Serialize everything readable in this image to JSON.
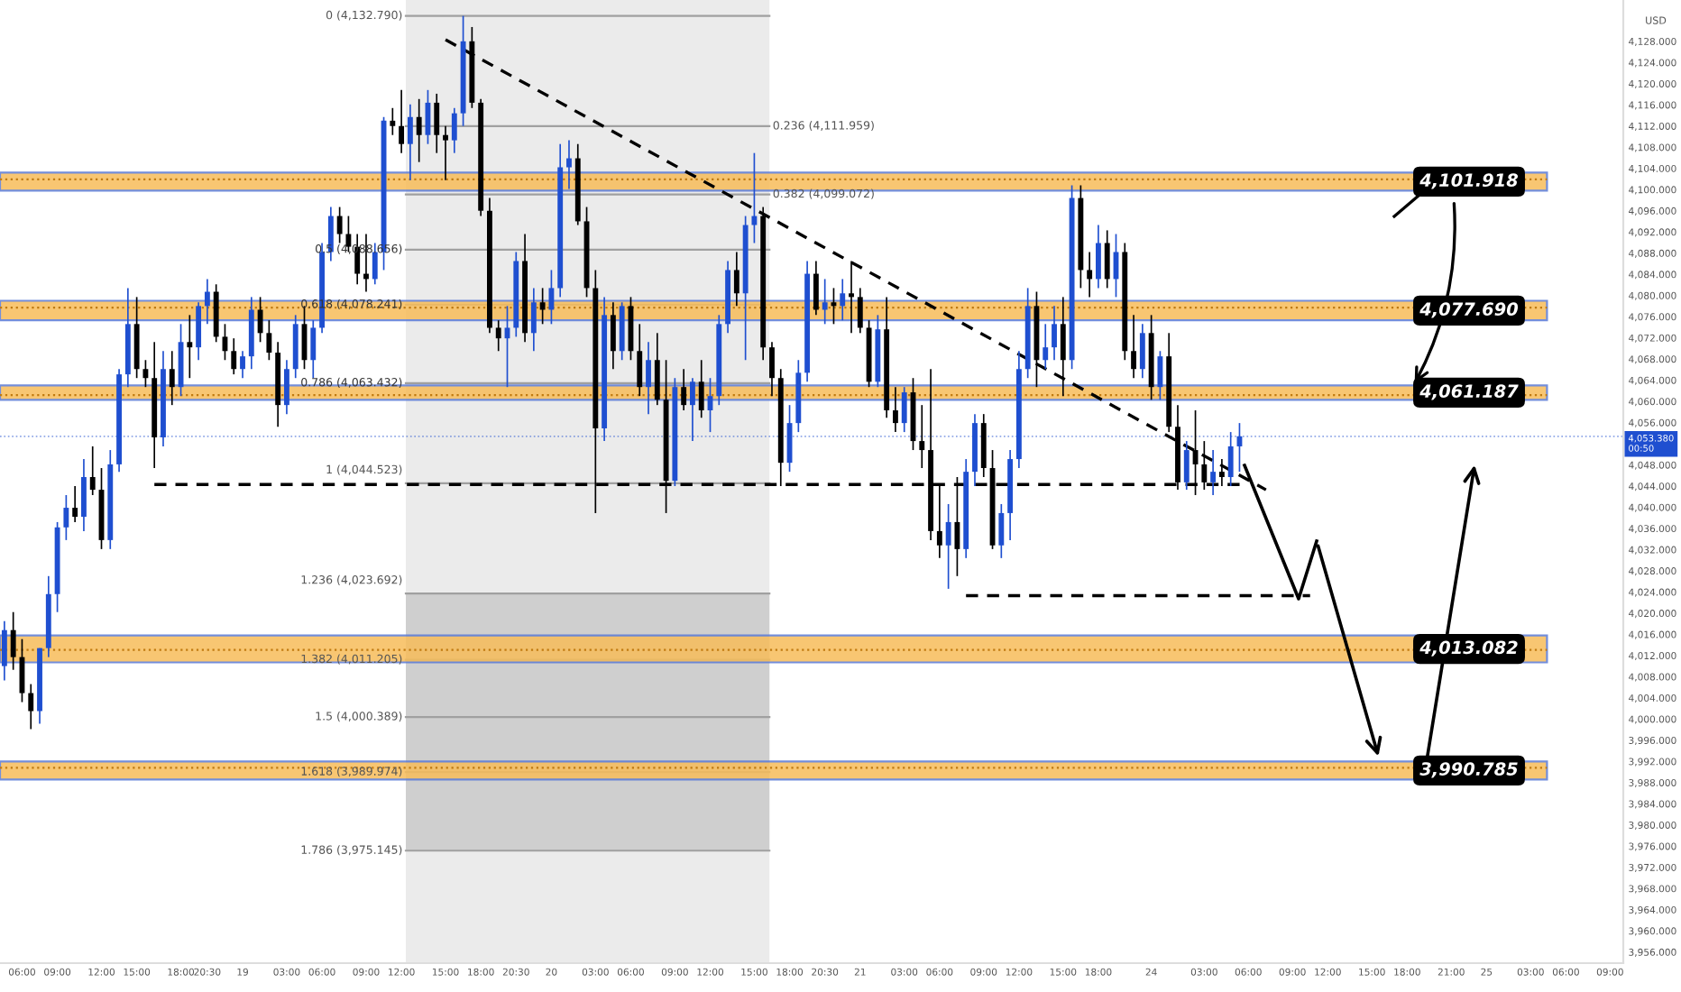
{
  "chart_data": {
    "type": "candlestick",
    "ylabel": "USD",
    "categories": [
      null,
      null,
      "06:00",
      null,
      null,
      null,
      "09:00",
      null,
      null,
      null,
      null,
      "12:00",
      null,
      null,
      null,
      "15:00",
      null,
      null,
      null,
      null,
      "18:00",
      null,
      null,
      "20:30",
      null,
      null,
      null,
      "19",
      null,
      null,
      null,
      null,
      "03:00",
      null,
      null,
      null,
      "06:00",
      null,
      null,
      null,
      null,
      "09:00",
      null,
      null,
      null,
      "12:00",
      null,
      null,
      null,
      null,
      "15:00",
      null,
      null,
      null,
      "18:00",
      null,
      null,
      null,
      "20:30",
      null,
      null,
      null,
      "20",
      null,
      null,
      null,
      null,
      "03:00",
      null,
      null,
      null,
      "06:00",
      null,
      null,
      null,
      null,
      "09:00",
      null,
      null,
      null,
      "12:00",
      null,
      null,
      null,
      null,
      "15:00",
      null,
      null,
      null,
      "18:00",
      null,
      null,
      null,
      "20:30",
      null,
      null,
      null,
      "21",
      null,
      null,
      null,
      null,
      "03:00",
      null,
      null,
      null,
      "06:00",
      null,
      null,
      null,
      null,
      "09:00",
      null,
      null,
      null,
      "12:00",
      null,
      null,
      null,
      null,
      "15:00",
      null,
      null,
      null,
      "18:00",
      null,
      null,
      null,
      null,
      null,
      "24",
      null,
      null,
      null,
      null,
      null,
      "03:00",
      null,
      null,
      null,
      null,
      "06:00",
      null,
      null,
      null,
      null,
      "09:00",
      null,
      null,
      null,
      "12:00",
      null,
      null,
      null,
      null,
      "15:00",
      null,
      null,
      null,
      "18:00",
      null,
      null,
      null,
      null,
      "21:00",
      null,
      null,
      null,
      "25",
      null,
      null,
      null,
      null,
      "03:00",
      null,
      null,
      null,
      "06:00",
      null,
      null,
      null,
      null,
      "09:00",
      null
    ],
    "ohlc": [
      [
        4010.0,
        4018.5,
        4007.3,
        4016.8
      ],
      [
        4016.8,
        4020.2,
        4009.3,
        4011.7
      ],
      [
        4011.7,
        4015.1,
        4003.2,
        4004.9
      ],
      [
        4004.9,
        4006.6,
        3998.1,
        4001.5
      ],
      [
        4001.5,
        4013.4,
        3999.1,
        4013.4
      ],
      [
        4013.4,
        4027.0,
        4011.7,
        4023.6
      ],
      [
        4023.6,
        4037.2,
        4020.2,
        4036.2
      ],
      [
        4036.2,
        4042.3,
        4033.8,
        4039.9
      ],
      [
        4039.9,
        4044.0,
        4037.2,
        4038.2
      ],
      [
        4038.2,
        4049.1,
        4035.5,
        4045.7
      ],
      [
        4045.7,
        4051.5,
        4042.3,
        4043.3
      ],
      [
        4043.3,
        4047.4,
        4032.1,
        4033.8
      ],
      [
        4033.8,
        4050.8,
        4032.1,
        4048.1
      ],
      [
        4048.1,
        4066.1,
        4046.7,
        4065.1
      ],
      [
        4065.1,
        4081.4,
        4062.7,
        4074.6
      ],
      [
        4074.6,
        4079.7,
        4064.4,
        4066.1
      ],
      [
        4066.1,
        4067.8,
        4062.7,
        4064.4
      ],
      [
        4064.4,
        4071.2,
        4047.4,
        4053.2
      ],
      [
        4053.2,
        4069.5,
        4051.5,
        4066.1
      ],
      [
        4066.1,
        4069.5,
        4059.3,
        4062.7
      ],
      [
        4062.7,
        4074.6,
        4061.0,
        4071.2
      ],
      [
        4071.2,
        4076.3,
        4064.4,
        4070.2
      ],
      [
        4070.2,
        4078.7,
        4067.8,
        4078.0
      ],
      [
        4078.0,
        4083.1,
        4074.6,
        4080.7
      ],
      [
        4080.7,
        4082.1,
        4071.2,
        4072.2
      ],
      [
        4072.2,
        4074.6,
        4067.8,
        4069.5
      ],
      [
        4069.5,
        4071.9,
        4065.1,
        4066.1
      ],
      [
        4066.1,
        4069.5,
        4064.4,
        4068.5
      ],
      [
        4068.5,
        4079.7,
        4066.1,
        4077.3
      ],
      [
        4077.3,
        4079.7,
        4071.2,
        4072.9
      ],
      [
        4072.9,
        4075.3,
        4067.8,
        4069.2
      ],
      [
        4069.2,
        4071.2,
        4055.2,
        4059.3
      ],
      [
        4059.3,
        4067.8,
        4057.6,
        4066.1
      ],
      [
        4066.1,
        4076.3,
        4064.4,
        4074.6
      ],
      [
        4074.6,
        4078.0,
        4066.1,
        4067.8
      ],
      [
        4067.8,
        4075.3,
        4064.4,
        4073.9
      ],
      [
        4073.9,
        4089.9,
        4072.9,
        4088.2
      ],
      [
        4088.2,
        4096.7,
        4086.5,
        4095.0
      ],
      [
        4095.0,
        4096.7,
        4089.9,
        4091.6
      ],
      [
        4091.6,
        4095.0,
        4088.2,
        4089.2
      ],
      [
        4089.2,
        4091.6,
        4082.1,
        4084.1
      ],
      [
        4084.1,
        4091.6,
        4080.7,
        4083.1
      ],
      [
        4083.1,
        4089.9,
        4082.1,
        4088.2
      ],
      [
        4088.2,
        4113.7,
        4084.8,
        4113.0
      ],
      [
        4113.0,
        4115.4,
        4110.3,
        4112.0
      ],
      [
        4112.0,
        4118.8,
        4106.9,
        4108.6
      ],
      [
        4108.6,
        4116.1,
        4101.8,
        4113.7
      ],
      [
        4113.7,
        4117.1,
        4105.2,
        4110.3
      ],
      [
        4110.3,
        4118.8,
        4108.6,
        4116.4
      ],
      [
        4116.4,
        4118.1,
        4106.9,
        4110.3
      ],
      [
        4110.3,
        4112.0,
        4101.8,
        4109.3
      ],
      [
        4109.3,
        4115.4,
        4106.9,
        4114.4
      ],
      [
        4114.4,
        4132.8,
        4112.0,
        4128.0
      ],
      [
        4128.0,
        4130.7,
        4115.4,
        4116.4
      ],
      [
        4116.4,
        4117.1,
        4095.0,
        4096.0
      ],
      [
        4096.0,
        4098.4,
        4072.9,
        4073.9
      ],
      [
        4073.9,
        4075.3,
        4069.5,
        4071.9
      ],
      [
        4071.9,
        4078.0,
        4062.7,
        4073.9
      ],
      [
        4073.9,
        4088.2,
        4072.2,
        4086.5
      ],
      [
        4086.5,
        4091.6,
        4071.2,
        4072.9
      ],
      [
        4072.9,
        4081.4,
        4069.5,
        4078.7
      ],
      [
        4078.7,
        4081.4,
        4074.6,
        4077.3
      ],
      [
        4077.3,
        4084.8,
        4074.6,
        4081.4
      ],
      [
        4081.4,
        4108.6,
        4079.7,
        4104.2
      ],
      [
        4104.2,
        4109.3,
        4100.1,
        4105.9
      ],
      [
        4105.9,
        4108.6,
        4093.3,
        4094.0
      ],
      [
        4094.0,
        4096.7,
        4079.7,
        4081.4
      ],
      [
        4081.4,
        4084.8,
        4038.9,
        4054.9
      ],
      [
        4054.9,
        4079.7,
        4052.5,
        4076.3
      ],
      [
        4076.3,
        4078.7,
        4066.1,
        4069.5
      ],
      [
        4069.5,
        4078.7,
        4067.8,
        4078.0
      ],
      [
        4078.0,
        4079.7,
        4067.8,
        4069.5
      ],
      [
        4069.5,
        4074.6,
        4061.0,
        4062.7
      ],
      [
        4062.7,
        4071.2,
        4057.6,
        4067.8
      ],
      [
        4067.8,
        4072.9,
        4059.3,
        4060.3
      ],
      [
        4060.3,
        4067.8,
        4038.9,
        4045.0
      ],
      [
        4045.0,
        4064.4,
        4044.0,
        4062.7
      ],
      [
        4062.7,
        4066.1,
        4058.3,
        4059.3
      ],
      [
        4059.3,
        4064.4,
        4052.5,
        4063.7
      ],
      [
        4063.7,
        4067.8,
        4056.9,
        4058.3
      ],
      [
        4058.3,
        4064.4,
        4054.2,
        4061.0
      ],
      [
        4061.0,
        4076.3,
        4059.3,
        4074.6
      ],
      [
        4074.6,
        4086.5,
        4072.9,
        4084.8
      ],
      [
        4084.8,
        4088.2,
        4078.0,
        4080.4
      ],
      [
        4080.4,
        4095.0,
        4067.8,
        4093.3
      ],
      [
        4093.3,
        4106.9,
        4089.9,
        4095.0
      ],
      [
        4095.0,
        4096.7,
        4067.8,
        4070.2
      ],
      [
        4070.2,
        4071.2,
        4061.0,
        4064.4
      ],
      [
        4064.4,
        4066.1,
        4044.0,
        4048.4
      ],
      [
        4048.4,
        4059.3,
        4046.7,
        4055.9
      ],
      [
        4055.9,
        4067.8,
        4054.2,
        4065.4
      ],
      [
        4065.4,
        4086.5,
        4063.7,
        4084.1
      ],
      [
        4084.1,
        4086.5,
        4076.3,
        4077.3
      ],
      [
        4077.3,
        4083.1,
        4074.6,
        4078.7
      ],
      [
        4078.7,
        4081.4,
        4074.6,
        4078.0
      ],
      [
        4078.0,
        4083.1,
        4075.3,
        4080.4
      ],
      [
        4080.4,
        4086.5,
        4072.9,
        4079.7
      ],
      [
        4079.7,
        4081.4,
        4072.9,
        4073.9
      ],
      [
        4073.9,
        4075.3,
        4062.7,
        4063.7
      ],
      [
        4063.7,
        4076.3,
        4062.7,
        4073.6
      ],
      [
        4073.6,
        4079.7,
        4056.9,
        4058.3
      ],
      [
        4058.3,
        4062.7,
        4054.2,
        4055.9
      ],
      [
        4055.9,
        4062.7,
        4054.2,
        4061.7
      ],
      [
        4061.7,
        4064.4,
        4050.8,
        4052.5
      ],
      [
        4052.5,
        4059.3,
        4047.4,
        4050.8
      ],
      [
        4050.8,
        4066.1,
        4033.8,
        4035.5
      ],
      [
        4035.5,
        4044.0,
        4030.4,
        4032.8
      ],
      [
        4032.8,
        4040.6,
        4024.6,
        4037.2
      ],
      [
        4037.2,
        4045.7,
        4027.0,
        4032.1
      ],
      [
        4032.1,
        4049.1,
        4030.4,
        4046.7
      ],
      [
        4046.7,
        4057.6,
        4044.0,
        4055.9
      ],
      [
        4055.9,
        4057.6,
        4045.7,
        4047.4
      ],
      [
        4047.4,
        4050.8,
        4032.1,
        4032.8
      ],
      [
        4032.8,
        4040.6,
        4030.4,
        4038.9
      ],
      [
        4038.9,
        4050.8,
        4033.8,
        4049.1
      ],
      [
        4049.1,
        4069.5,
        4047.4,
        4066.1
      ],
      [
        4066.1,
        4081.4,
        4064.4,
        4078.0
      ],
      [
        4078.0,
        4080.7,
        4062.7,
        4067.8
      ],
      [
        4067.8,
        4074.6,
        4066.1,
        4070.2
      ],
      [
        4070.2,
        4078.0,
        4067.8,
        4074.6
      ],
      [
        4074.6,
        4079.7,
        4061.0,
        4067.8
      ],
      [
        4067.8,
        4100.8,
        4066.1,
        4098.4
      ],
      [
        4098.4,
        4100.8,
        4081.4,
        4084.8
      ],
      [
        4084.8,
        4088.2,
        4079.7,
        4083.1
      ],
      [
        4083.1,
        4093.3,
        4081.4,
        4089.9
      ],
      [
        4089.9,
        4092.3,
        4081.4,
        4083.1
      ],
      [
        4083.1,
        4091.6,
        4079.7,
        4088.2
      ],
      [
        4088.2,
        4089.9,
        4067.8,
        4069.5
      ],
      [
        4069.5,
        4076.3,
        4064.4,
        4066.1
      ],
      [
        4066.1,
        4074.6,
        4064.4,
        4072.9
      ],
      [
        4072.9,
        4076.3,
        4060.3,
        4062.7
      ],
      [
        4062.7,
        4069.5,
        4060.3,
        4068.5
      ],
      [
        4068.5,
        4072.9,
        4054.2,
        4055.2
      ],
      [
        4055.2,
        4059.3,
        4043.3,
        4044.7
      ],
      [
        4044.7,
        4052.5,
        4043.3,
        4050.8
      ],
      [
        4050.8,
        4058.3,
        4042.3,
        4048.1
      ],
      [
        4048.1,
        4052.5,
        4043.3,
        4044.7
      ],
      [
        4044.7,
        4050.8,
        4042.3,
        4046.7
      ],
      [
        4046.7,
        4049.1,
        4044.0,
        4045.7
      ],
      [
        4045.7,
        4054.2,
        4044.0,
        4051.5
      ],
      [
        4051.5,
        4055.9,
        4046.7,
        4053.4
      ],
      null,
      null,
      null,
      null,
      null,
      null,
      null,
      null,
      null,
      null,
      null,
      null,
      null,
      null,
      null,
      null,
      null,
      null,
      null,
      null,
      null,
      null,
      null,
      null,
      null,
      null,
      null,
      null,
      null,
      null,
      null,
      null,
      null,
      null,
      null,
      null,
      null,
      null,
      null,
      null,
      null,
      null,
      null
    ],
    "colors": [
      "#1f4fd0",
      "#000000",
      "#000000",
      "#000000",
      "#1f4fd0",
      "#1f4fd0",
      "#1f4fd0",
      "#1f4fd0",
      "#000000",
      "#1f4fd0",
      "#000000",
      "#000000",
      "#1f4fd0",
      "#1f4fd0",
      "#1f4fd0",
      "#000000",
      "#000000",
      "#000000",
      "#1f4fd0",
      "#000000",
      "#1f4fd0",
      "#000000",
      "#1f4fd0",
      "#1f4fd0",
      "#000000",
      "#000000",
      "#000000",
      "#1f4fd0",
      "#1f4fd0",
      "#000000",
      "#000000",
      "#000000",
      "#1f4fd0",
      "#1f4fd0",
      "#000000",
      "#1f4fd0",
      "#1f4fd0",
      "#1f4fd0",
      "#000000",
      "#000000",
      "#000000",
      "#000000",
      "#1f4fd0",
      "#1f4fd0",
      "#000000",
      "#000000",
      "#1f4fd0",
      "#000000",
      "#1f4fd0",
      "#000000",
      "#000000",
      "#1f4fd0",
      "#1f4fd0",
      "#000000",
      "#000000",
      "#000000",
      "#000000",
      "#1f4fd0",
      "#1f4fd0",
      "#000000",
      "#1f4fd0",
      "#000000",
      "#1f4fd0",
      "#1f4fd0",
      "#1f4fd0",
      "#000000",
      "#000000",
      "#000000",
      "#1f4fd0",
      "#000000",
      "#1f4fd0",
      "#000000",
      "#000000",
      "#1f4fd0",
      "#000000",
      "#000000",
      "#1f4fd0",
      "#000000",
      "#1f4fd0",
      "#000000",
      "#1f4fd0",
      "#1f4fd0",
      "#1f4fd0",
      "#000000",
      "#1f4fd0",
      "#1f4fd0",
      "#000000",
      "#000000",
      "#000000",
      "#1f4fd0",
      "#1f4fd0",
      "#1f4fd0",
      "#000000",
      "#1f4fd0",
      "#000000",
      "#1f4fd0",
      "#000000",
      "#000000",
      "#000000",
      "#1f4fd0",
      "#000000",
      "#000000",
      "#1f4fd0",
      "#000000",
      "#000000",
      "#000000",
      "#000000",
      "#1f4fd0",
      "#000000",
      "#1f4fd0",
      "#1f4fd0",
      "#000000",
      "#000000",
      "#1f4fd0",
      "#1f4fd0",
      "#1f4fd0",
      "#1f4fd0",
      "#000000",
      "#1f4fd0",
      "#1f4fd0",
      "#000000",
      "#1f4fd0",
      "#000000",
      "#000000",
      "#1f4fd0",
      "#000000",
      "#1f4fd0",
      "#000000",
      "#000000",
      "#1f4fd0",
      "#000000",
      "#1f4fd0",
      "#000000",
      "#000000",
      "#1f4fd0",
      "#000000",
      "#000000",
      "#1f4fd0",
      "#000000",
      "#1f4fd0",
      "#1f4fd0",
      null,
      null,
      null,
      null,
      null,
      null,
      null,
      null,
      null,
      null,
      null,
      null,
      null,
      null,
      null,
      null,
      null,
      null,
      null,
      null,
      null,
      null,
      null,
      null,
      null,
      null,
      null,
      null,
      null,
      null,
      null,
      null,
      null,
      null,
      null,
      null,
      null,
      null,
      null,
      null,
      null,
      null,
      null
    ],
    "series": [
      {
        "type": "line",
        "color": "#000000",
        "line_style": "dashed",
        "values": [
          null,
          null,
          null,
          null,
          null,
          null,
          null,
          null,
          null,
          null,
          null,
          null,
          null,
          null,
          null,
          null,
          null,
          null,
          null,
          null,
          null,
          null,
          null,
          null,
          null,
          null,
          null,
          null,
          null,
          null,
          null,
          null,
          null,
          null,
          null,
          null,
          null,
          null,
          null,
          null,
          null,
          null,
          null,
          null,
          null,
          null,
          null,
          null,
          null,
          null,
          4128.3,
          null,
          null,
          null,
          null,
          null,
          null,
          null,
          null,
          null,
          null,
          null,
          null,
          null,
          null,
          null,
          null,
          null,
          null,
          null,
          null,
          null,
          null,
          null,
          null,
          null,
          null,
          null,
          null,
          null,
          null,
          null,
          null,
          null,
          null,
          null,
          null,
          null,
          null,
          null,
          null,
          null,
          null,
          null,
          null,
          null,
          null,
          null,
          null,
          null,
          null,
          null,
          null,
          null,
          null,
          null,
          null,
          null,
          null,
          null,
          null,
          null,
          null,
          null,
          null,
          null,
          null,
          null,
          null,
          null,
          null,
          null,
          null,
          null,
          null,
          null,
          null,
          null,
          null,
          null,
          null,
          null,
          null,
          null,
          null,
          null,
          null,
          null,
          null,
          null,
          null,
          null,
          null,
          4043.3,
          null,
          null,
          null,
          null,
          null,
          null,
          null,
          null,
          null,
          null,
          null,
          null,
          null,
          null,
          null,
          null,
          null,
          null,
          null,
          null,
          null,
          null,
          null,
          null,
          null,
          null,
          null,
          null,
          null,
          null,
          null,
          null,
          null,
          null,
          null,
          null,
          null,
          null,
          null,
          null
        ]
      },
      {
        "type": "line",
        "color": "#000000",
        "line_style": "dashed",
        "values": [
          null,
          null,
          null,
          null,
          null,
          null,
          null,
          null,
          null,
          null,
          null,
          null,
          null,
          null,
          null,
          null,
          null,
          4044.3,
          null,
          null,
          null,
          null,
          null,
          null,
          null,
          null,
          null,
          null,
          null,
          null,
          null,
          null,
          null,
          null,
          null,
          null,
          null,
          null,
          null,
          null,
          null,
          null,
          null,
          null,
          null,
          null,
          null,
          null,
          null,
          null,
          null,
          null,
          null,
          null,
          null,
          null,
          null,
          null,
          null,
          null,
          null,
          null,
          null,
          null,
          null,
          null,
          null,
          null,
          null,
          null,
          null,
          null,
          null,
          null,
          null,
          null,
          null,
          null,
          null,
          null,
          null,
          null,
          null,
          null,
          null,
          null,
          null,
          null,
          null,
          null,
          null,
          null,
          null,
          null,
          null,
          null,
          null,
          null,
          null,
          null,
          null,
          null,
          null,
          null,
          null,
          null,
          null,
          null,
          null,
          null,
          null,
          null,
          null,
          null,
          null,
          null,
          null,
          null,
          null,
          null,
          null,
          null,
          null,
          null,
          null,
          null,
          null,
          null,
          null,
          null,
          null,
          null,
          null,
          null,
          null,
          null,
          null,
          null,
          null,
          null,
          null,
          4044.3,
          null,
          null,
          null,
          null,
          null,
          null,
          null,
          null,
          null,
          null,
          null,
          null,
          null,
          null,
          null,
          null,
          null,
          null,
          null,
          null,
          null,
          null,
          null,
          null,
          null,
          null,
          null,
          null,
          null,
          null,
          null,
          null,
          null,
          null,
          null,
          null,
          null,
          null,
          null,
          null,
          null,
          null
        ]
      },
      {
        "type": "line",
        "color": "#000000",
        "line_style": "dashed",
        "values": [
          null,
          null,
          null,
          null,
          null,
          null,
          null,
          null,
          null,
          null,
          null,
          null,
          null,
          null,
          null,
          null,
          null,
          null,
          null,
          null,
          null,
          null,
          null,
          null,
          null,
          null,
          null,
          null,
          null,
          null,
          null,
          null,
          null,
          null,
          null,
          null,
          null,
          null,
          null,
          null,
          null,
          null,
          null,
          null,
          null,
          null,
          null,
          null,
          null,
          null,
          null,
          null,
          null,
          null,
          null,
          null,
          null,
          null,
          null,
          null,
          null,
          null,
          null,
          null,
          null,
          null,
          null,
          null,
          null,
          null,
          null,
          null,
          null,
          null,
          null,
          null,
          null,
          null,
          null,
          null,
          null,
          null,
          null,
          null,
          null,
          null,
          null,
          null,
          null,
          null,
          null,
          null,
          null,
          null,
          null,
          null,
          null,
          null,
          null,
          null,
          null,
          null,
          null,
          null,
          null,
          null,
          null,
          null,
          null,
          4023.3,
          null,
          null,
          null,
          null,
          null,
          null,
          null,
          null,
          null,
          null,
          null,
          null,
          null,
          null,
          null,
          null,
          null,
          null,
          null,
          null,
          null,
          null,
          null,
          null,
          null,
          null,
          null,
          null,
          null,
          null,
          null,
          null,
          null,
          null,
          null,
          null,
          null,
          null,
          4023.3,
          null,
          null,
          null,
          null,
          null,
          null,
          null,
          null,
          null,
          null,
          null,
          null,
          null,
          null,
          null,
          null,
          null,
          null,
          null,
          null,
          null,
          null,
          null,
          null,
          null,
          null,
          null,
          null,
          null,
          null,
          null,
          null,
          null,
          null,
          null
        ]
      }
    ],
    "bands": [
      {
        "axis": "y",
        "from": 3975.145,
        "to": 4023.691,
        "color": "#cfcfcf"
      },
      {
        "axis": "y",
        "from": 4099.8,
        "to": 4103.2,
        "label": "4,101.918",
        "color": "#f7bd5a"
      },
      {
        "axis": "y",
        "from": 4075.3,
        "to": 4079.0,
        "label": "4,077.690",
        "color": "#f7bd5a"
      },
      {
        "axis": "y",
        "from": 4060.3,
        "to": 4063.0,
        "label": "4,061.187",
        "color": "#f7bd5a"
      },
      {
        "axis": "y",
        "from": 4010.7,
        "to": 4015.8,
        "label": "4,013.082",
        "color": "#f7bd5a"
      },
      {
        "axis": "y",
        "from": 3988.6,
        "to": 3992.0,
        "label": "3,990.785",
        "color": "#f7bd5a"
      }
    ],
    "ref_lines": [
      {
        "axis": "y",
        "value": 4132.79,
        "label": "0 (4,132.790)",
        "color": "#a0a0a0",
        "line_style": "solid"
      },
      {
        "axis": "y",
        "value": 4111.959,
        "label": "0.236 (4,111.959)",
        "color": "#a0a0a0",
        "line_style": "solid"
      },
      {
        "axis": "y",
        "value": 4099.072,
        "label": "0.382 (4,099.072)",
        "color": "#a0a0a0",
        "line_style": "solid"
      },
      {
        "axis": "y",
        "value": 4088.656,
        "label": "0.5 (4,088.656)",
        "color": "#a0a0a0",
        "line_style": "solid"
      },
      {
        "axis": "y",
        "value": 4078.241,
        "label": "0.618 (4,078.241)",
        "color": "#a0a0a0",
        "line_style": "solid"
      },
      {
        "axis": "y",
        "value": 4063.432,
        "label": "0.786 (4,063.432)",
        "color": "#a0a0a0",
        "line_style": "solid"
      },
      {
        "axis": "y",
        "value": 4044.523,
        "label": "1 (4,044.523)",
        "color": "#a0a0a0",
        "line_style": "solid"
      },
      {
        "axis": "y",
        "value": 4023.692,
        "label": "1.236 (4,023.692)",
        "color": "#a0a0a0",
        "line_style": "solid"
      },
      {
        "axis": "y",
        "value": 4011.205,
        "label": "1.382 (4,011.205)",
        "color": "#a0a0a0",
        "line_style": "solid"
      },
      {
        "axis": "y",
        "value": 4000.389,
        "label": "1.5 (4,000.389)",
        "color": "#a0a0a0",
        "line_style": "solid"
      },
      {
        "axis": "y",
        "value": 3989.974,
        "label": "1.618 (3,989.974)",
        "color": "#a0a0a0",
        "line_style": "solid"
      },
      {
        "axis": "y",
        "value": 3975.145,
        "label": "1.786 (3,975.145)",
        "color": "#a0a0a0",
        "line_style": "solid"
      },
      {
        "axis": "y",
        "value": 4053.38,
        "label": "4,053.380\n00:50",
        "color": "#1f4fd0",
        "line_style": "dotted"
      },
      {
        "axis": "y",
        "value": 4101.918,
        "color": "#c07a10",
        "line_style": "dotted"
      },
      {
        "axis": "y",
        "value": 4077.69,
        "color": "#c07a10",
        "line_style": "dotted"
      },
      {
        "axis": "y",
        "value": 4061.187,
        "color": "#c07a10",
        "line_style": "dotted"
      },
      {
        "axis": "y",
        "value": 4013.082,
        "color": "#c07a10",
        "line_style": "dotted"
      },
      {
        "axis": "y",
        "value": 3990.785,
        "color": "#c07a10",
        "line_style": "dotted"
      }
    ],
    "ylim": [
      3953.9,
      4135.8
    ],
    "yticks": [
      {
        "value": 3956,
        "label": "3,956.000"
      },
      {
        "value": 3960,
        "label": "3,960.000"
      },
      {
        "value": 3964,
        "label": "3,964.000"
      },
      {
        "value": 3968,
        "label": "3,968.000"
      },
      {
        "value": 3972,
        "label": "3,972.000"
      },
      {
        "value": 3976,
        "label": "3,976.000"
      },
      {
        "value": 3980,
        "label": "3,980.000"
      },
      {
        "value": 3984,
        "label": "3,984.000"
      },
      {
        "value": 3988,
        "label": "3,988.000"
      },
      {
        "value": 3992,
        "label": "3,992.000"
      },
      {
        "value": 3996,
        "label": "3,996.000"
      },
      {
        "value": 4000,
        "label": "4,000.000"
      },
      {
        "value": 4004,
        "label": "4,004.000"
      },
      {
        "value": 4008,
        "label": "4,008.000"
      },
      {
        "value": 4012,
        "label": "4,012.000"
      },
      {
        "value": 4016,
        "label": "4,016.000"
      },
      {
        "value": 4020,
        "label": "4,020.000"
      },
      {
        "value": 4024,
        "label": "4,024.000"
      },
      {
        "value": 4028,
        "label": "4,028.000"
      },
      {
        "value": 4032,
        "label": "4,032.000"
      },
      {
        "value": 4036,
        "label": "4,036.000"
      },
      {
        "value": 4040,
        "label": "4,040.000"
      },
      {
        "value": 4044,
        "label": "4,044.000"
      },
      {
        "value": 4048,
        "label": "4,048.000"
      },
      {
        "value": 4056,
        "label": "4,056.000"
      },
      {
        "value": 4060,
        "label": "4,060.000"
      },
      {
        "value": 4064,
        "label": "4,064.000"
      },
      {
        "value": 4068,
        "label": "4,068.000"
      },
      {
        "value": 4072,
        "label": "4,072.000"
      },
      {
        "value": 4076,
        "label": "4,076.000"
      },
      {
        "value": 4080,
        "label": "4,080.000"
      },
      {
        "value": 4084,
        "label": "4,084.000"
      },
      {
        "value": 4088,
        "label": "4,088.000"
      },
      {
        "value": 4092,
        "label": "4,092.000"
      },
      {
        "value": 4096,
        "label": "4,096.000"
      },
      {
        "value": 4100,
        "label": "4,100.000"
      },
      {
        "value": 4104,
        "label": "4,104.000"
      },
      {
        "value": 4108,
        "label": "4,108.000"
      },
      {
        "value": 4112,
        "label": "4,112.000"
      },
      {
        "value": 4116,
        "label": "4,116.000"
      },
      {
        "value": 4120,
        "label": "4,120.000"
      },
      {
        "value": 4124,
        "label": "4,124.000"
      },
      {
        "value": 4128,
        "label": "4,128.000"
      }
    ],
    "grid": false,
    "legend": false
  }
}
